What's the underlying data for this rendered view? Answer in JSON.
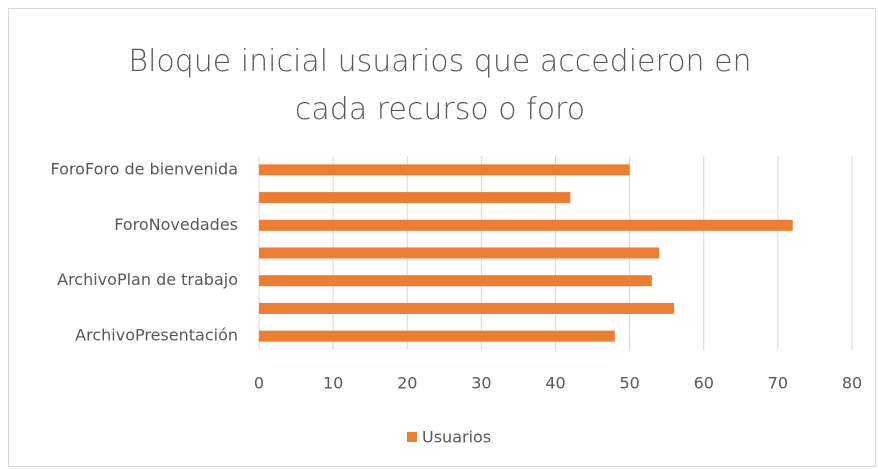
{
  "chart_data": {
    "type": "bar",
    "orientation": "horizontal",
    "title": "Bloque inicial usuarios que accedieron en cada recurso o foro",
    "categories": [
      "ForoForo de bienvenida",
      null,
      "ForoNovedades",
      null,
      "ArchivoPlan de trabajo",
      null,
      "ArchivoPresentación"
    ],
    "series": [
      {
        "name": "Usuarios",
        "color": "#ed7d31",
        "values": [
          50,
          42,
          72,
          54,
          53,
          56,
          48
        ]
      }
    ],
    "xlim": [
      0,
      80
    ],
    "xticks": [
      0,
      10,
      20,
      30,
      40,
      50,
      60,
      70,
      80
    ],
    "grid": true,
    "legend": "bottom"
  }
}
